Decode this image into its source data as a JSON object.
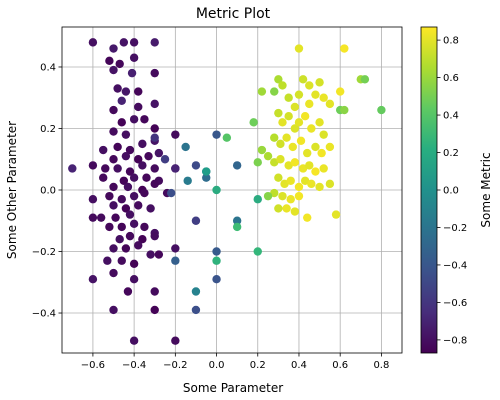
{
  "chart_data": {
    "type": "scatter",
    "title": "Metric Plot",
    "xlabel": "Some Parameter",
    "ylabel": "Some Other Parameter",
    "colorbar_label": "Some Metric",
    "xlim": [
      -0.75,
      0.9
    ],
    "ylim": [
      -0.53,
      0.53
    ],
    "xticks": [
      -0.6,
      -0.4,
      -0.2,
      0.0,
      0.2,
      0.4,
      0.6,
      0.8
    ],
    "xtick_labels": [
      "−0.6",
      "−0.4",
      "−0.2",
      "0.0",
      "0.2",
      "0.4",
      "0.6",
      "0.8"
    ],
    "yticks": [
      -0.4,
      -0.2,
      0.0,
      0.2,
      0.4
    ],
    "ytick_labels": [
      "−0.4",
      "−0.2",
      "0.0",
      "0.2",
      "0.4"
    ],
    "color_range": [
      -0.87,
      0.87
    ],
    "colorbar_ticks": [
      -0.8,
      -0.6,
      -0.4,
      -0.2,
      0.0,
      0.2,
      0.4,
      0.6,
      0.8
    ],
    "colorbar_tick_labels": [
      "−0.8",
      "−0.6",
      "−0.4",
      "−0.2",
      "0.0",
      "0.2",
      "0.4",
      "0.6",
      "0.8"
    ],
    "colormap": "viridis",
    "grid": true,
    "points": [
      [
        -0.6,
        0.48,
        -0.8
      ],
      [
        -0.5,
        0.46,
        -0.75
      ],
      [
        -0.45,
        0.48,
        -0.78
      ],
      [
        -0.4,
        0.48,
        -0.8
      ],
      [
        -0.3,
        0.48,
        -0.74
      ],
      [
        -0.52,
        0.42,
        -0.85
      ],
      [
        -0.47,
        0.41,
        -0.84
      ],
      [
        -0.4,
        0.43,
        -0.8
      ],
      [
        -0.5,
        0.39,
        -0.78
      ],
      [
        -0.41,
        0.38,
        -0.72
      ],
      [
        -0.3,
        0.38,
        -0.82
      ],
      [
        -0.48,
        0.33,
        -0.8
      ],
      [
        -0.44,
        0.32,
        -0.76
      ],
      [
        -0.38,
        0.32,
        -0.85
      ],
      [
        -0.46,
        0.29,
        -0.7
      ],
      [
        -0.38,
        0.27,
        -0.82
      ],
      [
        -0.3,
        0.28,
        -0.78
      ],
      [
        -0.5,
        0.26,
        -0.83
      ],
      [
        -0.46,
        0.22,
        -0.86
      ],
      [
        -0.4,
        0.23,
        -0.8
      ],
      [
        -0.35,
        0.23,
        -0.84
      ],
      [
        -0.5,
        0.19,
        -0.82
      ],
      [
        -0.44,
        0.18,
        -0.8
      ],
      [
        -0.48,
        0.14,
        -0.85
      ],
      [
        -0.42,
        0.13,
        -0.83
      ],
      [
        -0.36,
        0.15,
        -0.8
      ],
      [
        -0.3,
        0.16,
        -0.78
      ],
      [
        -0.3,
        0.2,
        -0.86
      ],
      [
        -0.2,
        0.18,
        -0.82
      ],
      [
        -0.55,
        0.13,
        -0.8
      ],
      [
        -0.5,
        0.1,
        -0.83
      ],
      [
        -0.44,
        0.11,
        -0.8
      ],
      [
        -0.38,
        0.1,
        -0.86
      ],
      [
        -0.33,
        0.11,
        -0.84
      ],
      [
        -0.28,
        0.12,
        -0.78
      ],
      [
        -0.7,
        0.07,
        -0.7
      ],
      [
        -0.6,
        0.08,
        -0.82
      ],
      [
        -0.54,
        0.07,
        -0.83
      ],
      [
        -0.48,
        0.07,
        -0.8
      ],
      [
        -0.42,
        0.06,
        -0.84
      ],
      [
        -0.36,
        0.08,
        -0.8
      ],
      [
        -0.3,
        0.07,
        -0.82
      ],
      [
        -0.2,
        0.07,
        -0.84
      ],
      [
        -0.55,
        0.04,
        -0.83
      ],
      [
        -0.45,
        0.03,
        -0.85
      ],
      [
        -0.4,
        0.04,
        -0.8
      ],
      [
        -0.34,
        0.04,
        -0.84
      ],
      [
        -0.28,
        0.03,
        -0.82
      ],
      [
        -0.5,
        0.01,
        -0.83
      ],
      [
        -0.43,
        0.01,
        -0.8
      ],
      [
        -0.36,
        0.0,
        -0.86
      ],
      [
        -0.3,
        0.02,
        -0.84
      ],
      [
        -0.6,
        -0.03,
        -0.8
      ],
      [
        -0.52,
        -0.02,
        -0.83
      ],
      [
        -0.46,
        -0.03,
        -0.82
      ],
      [
        -0.4,
        -0.02,
        -0.8
      ],
      [
        -0.35,
        -0.01,
        -0.84
      ],
      [
        -0.24,
        -0.01,
        -0.82
      ],
      [
        -0.5,
        -0.05,
        -0.8
      ],
      [
        -0.44,
        -0.06,
        -0.86
      ],
      [
        -0.38,
        -0.05,
        -0.82
      ],
      [
        -0.32,
        -0.06,
        -0.8
      ],
      [
        -0.56,
        -0.09,
        -0.82
      ],
      [
        -0.49,
        -0.09,
        -0.84
      ],
      [
        -0.42,
        -0.08,
        -0.8
      ],
      [
        -0.6,
        -0.09,
        -0.82
      ],
      [
        -0.46,
        -0.12,
        -0.85
      ],
      [
        -0.4,
        -0.11,
        -0.8
      ],
      [
        -0.35,
        -0.12,
        -0.83
      ],
      [
        -0.3,
        -0.14,
        -0.8
      ],
      [
        -0.52,
        -0.12,
        -0.84
      ],
      [
        -0.47,
        -0.16,
        -0.8
      ],
      [
        -0.42,
        -0.15,
        -0.83
      ],
      [
        -0.36,
        -0.16,
        -0.86
      ],
      [
        -0.3,
        -0.15,
        -0.82
      ],
      [
        -0.5,
        -0.19,
        -0.8
      ],
      [
        -0.44,
        -0.19,
        -0.85
      ],
      [
        -0.38,
        -0.18,
        -0.82
      ],
      [
        -0.32,
        -0.21,
        -0.8
      ],
      [
        -0.28,
        -0.21,
        -0.84
      ],
      [
        -0.53,
        -0.23,
        -0.8
      ],
      [
        -0.46,
        -0.23,
        -0.82
      ],
      [
        -0.4,
        -0.24,
        -0.86
      ],
      [
        -0.2,
        -0.19,
        -0.8
      ],
      [
        -0.5,
        -0.27,
        -0.82
      ],
      [
        -0.4,
        -0.29,
        -0.8
      ],
      [
        -0.6,
        -0.29,
        -0.78
      ],
      [
        -0.43,
        -0.33,
        -0.84
      ],
      [
        -0.3,
        -0.33,
        -0.82
      ],
      [
        -0.5,
        -0.39,
        -0.8
      ],
      [
        -0.3,
        -0.39,
        -0.86
      ],
      [
        -0.4,
        -0.49,
        -0.8
      ],
      [
        -0.2,
        -0.49,
        -0.82
      ],
      [
        -0.3,
        0.17,
        -0.6
      ],
      [
        -0.25,
        0.1,
        -0.55
      ],
      [
        -0.2,
        0.07,
        -0.7
      ],
      [
        -0.22,
        -0.01,
        -0.45
      ],
      [
        -0.15,
        0.14,
        -0.2
      ],
      [
        -0.1,
        0.08,
        -0.48
      ],
      [
        -0.05,
        0.04,
        -0.25
      ],
      [
        -0.05,
        0.06,
        -0.3
      ],
      [
        0.0,
        0.18,
        -0.4
      ],
      [
        -0.1,
        -0.1,
        -0.55
      ],
      [
        -0.14,
        0.03,
        -0.15
      ],
      [
        -0.2,
        -0.23,
        -0.35
      ],
      [
        0.0,
        -0.2,
        -0.38
      ],
      [
        0.0,
        -0.29,
        -0.42
      ],
      [
        -0.1,
        -0.33,
        -0.1
      ],
      [
        -0.1,
        -0.39,
        -0.45
      ],
      [
        0.1,
        0.08,
        -0.3
      ],
      [
        0.1,
        -0.1,
        -0.2
      ],
      [
        -0.05,
        0.06,
        0.1
      ],
      [
        0.0,
        0.0,
        0.2
      ],
      [
        0.0,
        -0.23,
        0.25
      ],
      [
        0.1,
        -0.12,
        0.32
      ],
      [
        0.05,
        0.17,
        0.4
      ],
      [
        0.2,
        -0.03,
        0.2
      ],
      [
        0.2,
        -0.2,
        0.28
      ],
      [
        0.18,
        0.22,
        0.48
      ],
      [
        0.2,
        0.09,
        0.52
      ],
      [
        0.22,
        0.32,
        0.62
      ],
      [
        0.28,
        0.32,
        0.55
      ],
      [
        0.3,
        0.36,
        0.65
      ],
      [
        0.32,
        0.34,
        0.7
      ],
      [
        0.35,
        0.3,
        0.72
      ],
      [
        0.38,
        0.27,
        0.78
      ],
      [
        0.4,
        0.46,
        0.8
      ],
      [
        0.42,
        0.36,
        0.74
      ],
      [
        0.45,
        0.34,
        0.78
      ],
      [
        0.48,
        0.31,
        0.8
      ],
      [
        0.5,
        0.35,
        0.76
      ],
      [
        0.52,
        0.3,
        0.82
      ],
      [
        0.55,
        0.28,
        0.8
      ],
      [
        0.6,
        0.32,
        0.84
      ],
      [
        0.62,
        0.46,
        0.85
      ],
      [
        0.7,
        0.36,
        0.62
      ],
      [
        0.72,
        0.36,
        0.5
      ],
      [
        0.8,
        0.26,
        0.45
      ],
      [
        0.6,
        0.26,
        0.48
      ],
      [
        0.62,
        0.26,
        0.56
      ],
      [
        0.3,
        0.25,
        0.72
      ],
      [
        0.32,
        0.22,
        0.8
      ],
      [
        0.35,
        0.24,
        0.76
      ],
      [
        0.38,
        0.2,
        0.78
      ],
      [
        0.4,
        0.22,
        0.8
      ],
      [
        0.43,
        0.24,
        0.84
      ],
      [
        0.46,
        0.2,
        0.82
      ],
      [
        0.5,
        0.22,
        0.8
      ],
      [
        0.52,
        0.18,
        0.78
      ],
      [
        0.28,
        0.17,
        0.68
      ],
      [
        0.31,
        0.15,
        0.75
      ],
      [
        0.34,
        0.17,
        0.8
      ],
      [
        0.37,
        0.14,
        0.82
      ],
      [
        0.41,
        0.16,
        0.84
      ],
      [
        0.44,
        0.12,
        0.8
      ],
      [
        0.48,
        0.14,
        0.78
      ],
      [
        0.51,
        0.12,
        0.84
      ],
      [
        0.55,
        0.14,
        0.82
      ],
      [
        0.22,
        0.13,
        0.6
      ],
      [
        0.25,
        0.11,
        0.65
      ],
      [
        0.28,
        0.09,
        0.72
      ],
      [
        0.31,
        0.1,
        0.78
      ],
      [
        0.35,
        0.08,
        0.8
      ],
      [
        0.38,
        0.09,
        0.84
      ],
      [
        0.42,
        0.07,
        0.82
      ],
      [
        0.45,
        0.08,
        0.8
      ],
      [
        0.48,
        0.06,
        0.85
      ],
      [
        0.52,
        0.07,
        0.82
      ],
      [
        0.3,
        0.04,
        0.75
      ],
      [
        0.33,
        0.02,
        0.8
      ],
      [
        0.36,
        0.03,
        0.82
      ],
      [
        0.4,
        0.01,
        0.84
      ],
      [
        0.43,
        0.03,
        0.8
      ],
      [
        0.46,
        0.02,
        0.82
      ],
      [
        0.5,
        0.01,
        0.8
      ],
      [
        0.55,
        0.02,
        0.78
      ],
      [
        0.28,
        -0.01,
        0.7
      ],
      [
        0.32,
        -0.02,
        0.78
      ],
      [
        0.36,
        -0.03,
        0.82
      ],
      [
        0.4,
        -0.02,
        0.84
      ],
      [
        0.25,
        -0.02,
        0.55
      ],
      [
        0.3,
        -0.06,
        0.75
      ],
      [
        0.34,
        -0.06,
        0.82
      ],
      [
        0.38,
        -0.07,
        0.8
      ],
      [
        0.44,
        -0.09,
        0.84
      ],
      [
        0.58,
        -0.08,
        0.8
      ],
      [
        0.45,
        0.28,
        0.82
      ],
      [
        0.4,
        0.31,
        0.76
      ]
    ]
  }
}
